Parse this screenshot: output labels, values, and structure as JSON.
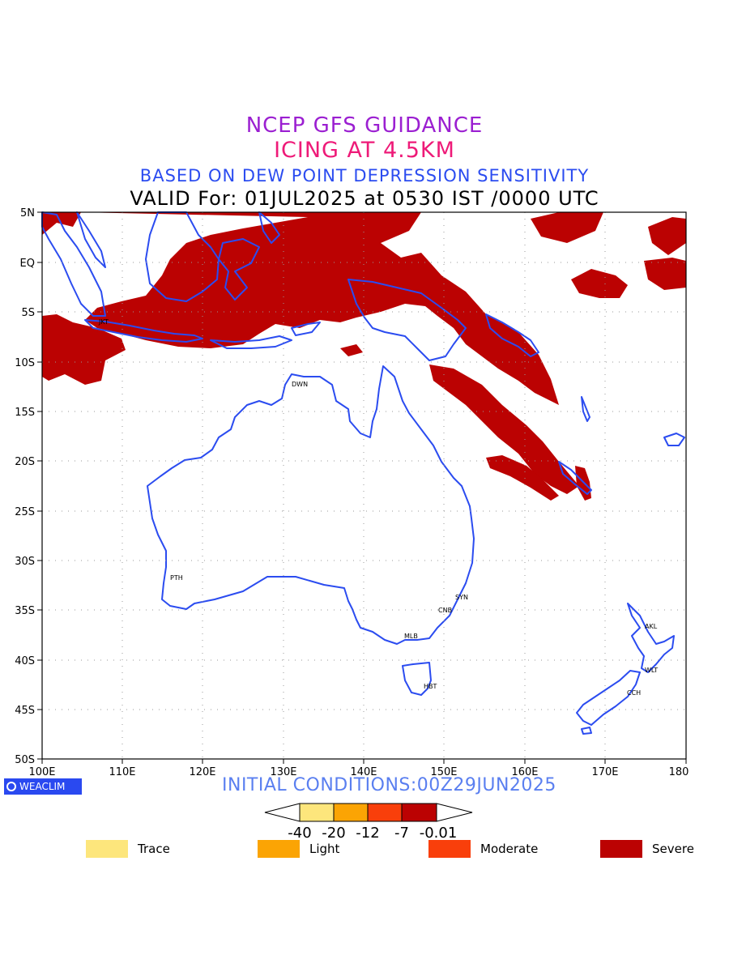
{
  "header": {
    "line1": "NCEP GFS GUIDANCE",
    "line2": "ICING AT 4.5KM",
    "line3": "BASED ON DEW POINT DEPRESSION SENSITIVITY",
    "line4": "VALID For: 01JUL2025 at 0530 IST /0000 UTC"
  },
  "axes": {
    "lon_labels": [
      "100E",
      "110E",
      "120E",
      "130E",
      "140E",
      "150E",
      "160E",
      "170E",
      "180"
    ],
    "lat_labels": [
      "5N",
      "EQ",
      "5S",
      "10S",
      "15S",
      "20S",
      "25S",
      "30S",
      "35S",
      "40S",
      "45S",
      "50S"
    ]
  },
  "cities": [
    "JKT",
    "DWN",
    "PTH",
    "SYN",
    "CNB",
    "MLB",
    "HBT",
    "AKL",
    "WLT",
    "CCH"
  ],
  "footer": {
    "logo_text": "WEACLIM",
    "initial_conditions": "INITIAL CONDITIONS:00Z29JUN2025"
  },
  "colorbar": {
    "tick_labels": [
      "-40",
      "-20",
      "-12",
      "-7",
      "-0.01"
    ],
    "colors": [
      "#fde67c",
      "#fba404",
      "#f93f0b",
      "#bb0202"
    ]
  },
  "legend": [
    {
      "label": "Trace",
      "color": "#fde67c"
    },
    {
      "label": "Light",
      "color": "#fba404"
    },
    {
      "label": "Moderate",
      "color": "#f93f0b"
    },
    {
      "label": "Severe",
      "color": "#bb0202"
    }
  ],
  "colors": {
    "coast": "#2b4cf0",
    "severe": "#bb0202"
  }
}
